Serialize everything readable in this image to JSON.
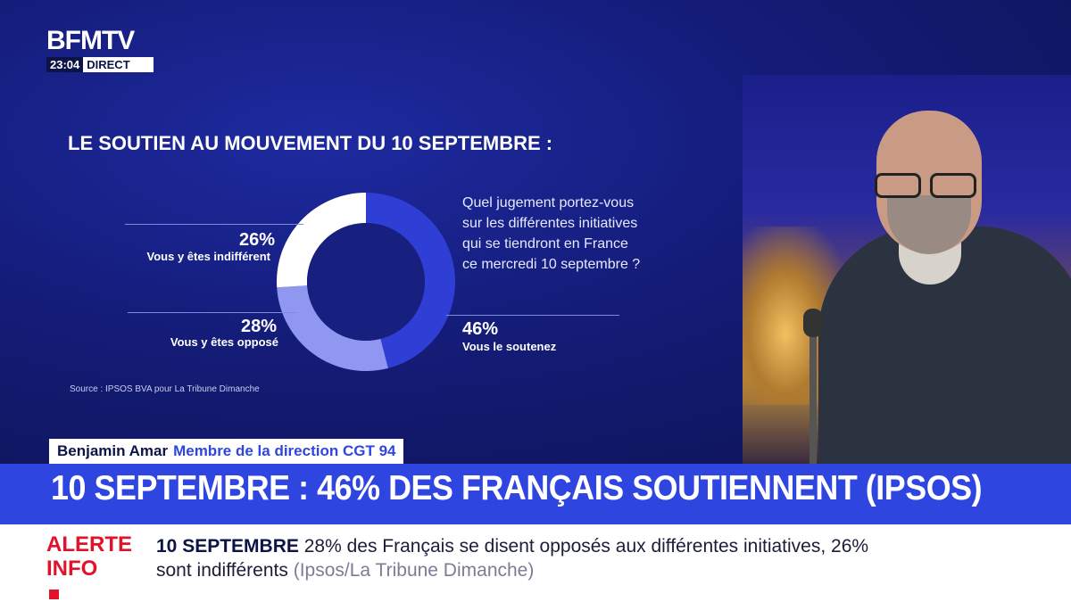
{
  "channel": {
    "logo": "BFMTV",
    "time": "23:04",
    "status": "DIRECT"
  },
  "chart_data": {
    "type": "pie",
    "variant": "donut",
    "title": "LE SOUTIEN AU MOUVEMENT DU 10 SEPTEMBRE :",
    "question_lines": [
      "Quel jugement portez-vous",
      "sur les différentes initiatives",
      "qui se tiendront en France",
      "ce mercredi 10 septembre ?"
    ],
    "source": "Source : IPSOS BVA pour La Tribune Dimanche",
    "slices": [
      {
        "label": "Vous le soutenez",
        "value": 46,
        "display": "46%",
        "color": "#2f3fd6"
      },
      {
        "label": "Vous y êtes opposé",
        "value": 28,
        "display": "28%",
        "color": "#8f97f0"
      },
      {
        "label": "Vous y êtes indifférent",
        "value": 26,
        "display": "26%",
        "color": "#ffffff"
      }
    ]
  },
  "speaker": {
    "name": "Benjamin Amar",
    "role": "Membre de la direction CGT 94"
  },
  "headline": "10 SEPTEMBRE : 46% DES FRANÇAIS SOUTIENNENT (IPSOS)",
  "alert": {
    "tag_line1": "ALERTE",
    "tag_line2": "INFO",
    "keyword": "10 SEPTEMBRE",
    "text": "28% des Français se disent opposés aux différentes initiatives, 26% sont indifférents",
    "source": "(Ipsos/La Tribune Dimanche)"
  },
  "colors": {
    "accent_blue": "#2f45e0",
    "alert_red": "#e2122b",
    "navy": "#0c1346"
  }
}
